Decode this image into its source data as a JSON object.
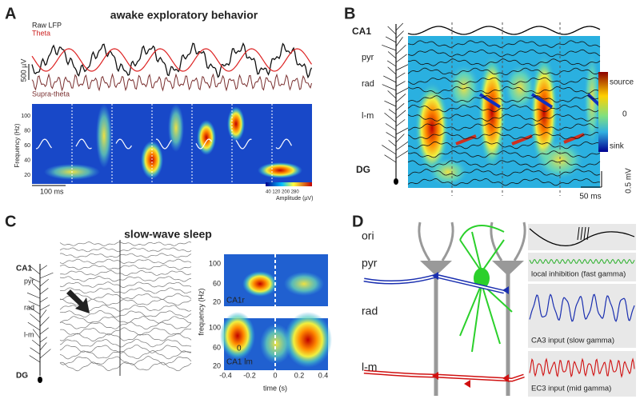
{
  "panelA": {
    "label": "A",
    "title": "awake exploratory behavior",
    "legend": [
      "Raw LFP",
      "Theta"
    ],
    "scale_v": "500 µV",
    "supra": "Supra-theta",
    "ylabel": "Frequency (Hz)",
    "yticks": [
      "100",
      "80",
      "60",
      "40",
      "20"
    ],
    "scale_t": "100 ms",
    "cbar_ticks": "40  120  200  280",
    "cbar_label": "Amplitude (µV)"
  },
  "panelB": {
    "label": "B",
    "layers": [
      "CA1",
      "pyr",
      "rad",
      "l-m",
      "DG"
    ],
    "cbar": [
      "source",
      "0",
      "sink"
    ],
    "scale_v": "0.5 mV",
    "scale_t": "50 ms"
  },
  "panelC": {
    "label": "C",
    "title": "slow-wave sleep",
    "layers": [
      "CA1",
      "pyr",
      "rad",
      "l-m",
      "DG"
    ],
    "ylabel": "frequency (Hz)",
    "yticks": [
      "100",
      "60",
      "20"
    ],
    "top_label": "CA1r",
    "bottom_label": "CA1 lm",
    "bottom_zero": "0",
    "xticks": [
      "-0.4",
      "-0.2",
      "0",
      "0.2",
      "0.4"
    ],
    "xlabel": "time (s)"
  },
  "panelD": {
    "label": "D",
    "layers": [
      "ori",
      "pyr",
      "rad",
      "l-m"
    ],
    "captions": [
      "local inhibition (fast gamma)",
      "CA3 input (slow gamma)",
      "EC3 input (mid gamma)"
    ]
  }
}
